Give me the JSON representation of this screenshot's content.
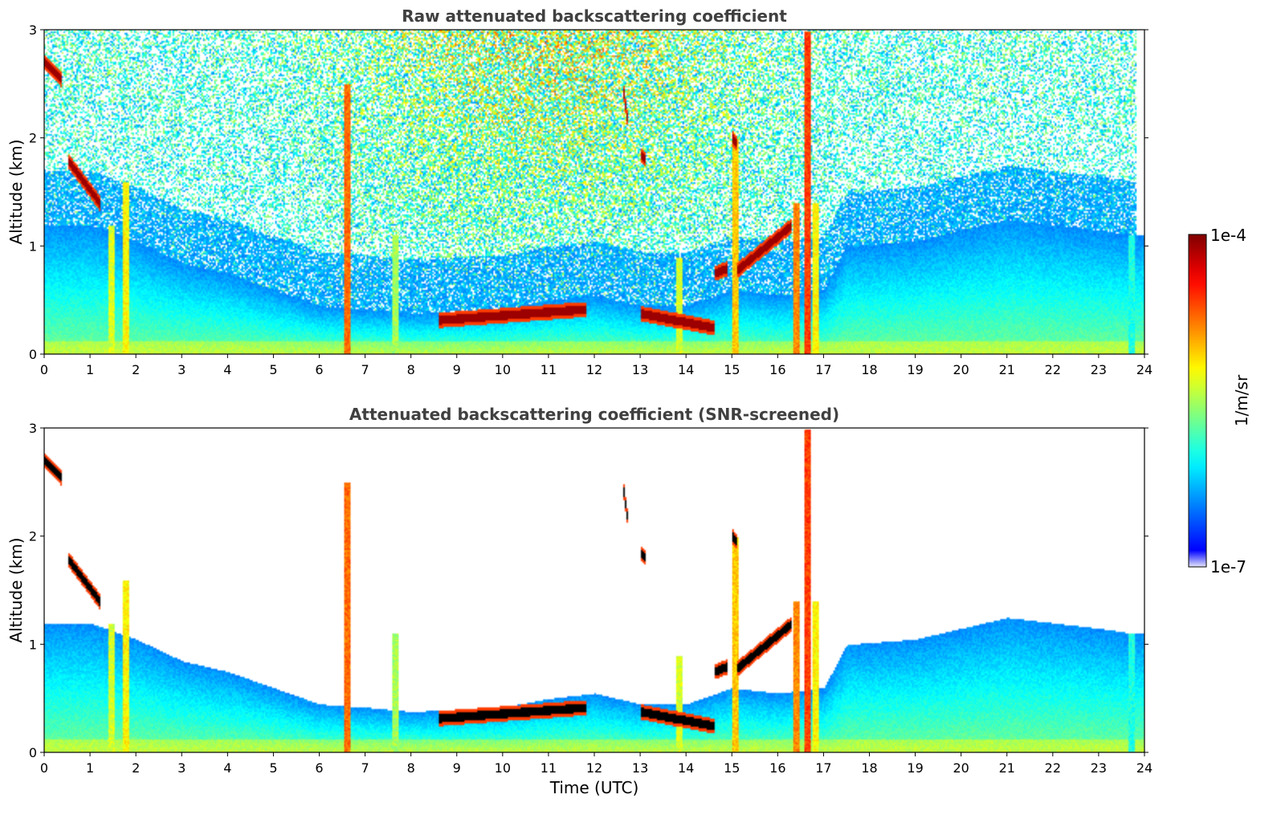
{
  "chart_data": [
    {
      "type": "heatmap",
      "title": "Raw attenuated backscattering coefficient",
      "xlabel": "",
      "ylabel": "Altitude (km)",
      "xlim": [
        0,
        24
      ],
      "ylim": [
        0,
        3
      ],
      "xticks": [
        "0",
        "1",
        "2",
        "3",
        "4",
        "5",
        "6",
        "7",
        "8",
        "9",
        "10",
        "11",
        "12",
        "13",
        "14",
        "15",
        "16",
        "17",
        "18",
        "19",
        "20",
        "21",
        "22",
        "23",
        "24"
      ],
      "yticks": [
        "0",
        "1",
        "2",
        "3"
      ],
      "screened": false
    },
    {
      "type": "heatmap",
      "title": "Attenuated backscattering coefficient (SNR-screened)",
      "xlabel": "Time (UTC)",
      "ylabel": "Altitude (km)",
      "xlim": [
        0,
        24
      ],
      "ylim": [
        0,
        3
      ],
      "xticks": [
        "0",
        "1",
        "2",
        "3",
        "4",
        "5",
        "6",
        "7",
        "8",
        "9",
        "10",
        "11",
        "12",
        "13",
        "14",
        "15",
        "16",
        "17",
        "18",
        "19",
        "20",
        "21",
        "22",
        "23",
        "24"
      ],
      "yticks": [
        "0",
        "1",
        "2",
        "3"
      ],
      "screened": true
    }
  ],
  "colorbar": {
    "label": "1/m/sr",
    "max_label": "1e-4",
    "min_label": "1e-7",
    "colormap": "jet",
    "scale": "log"
  },
  "features": {
    "boundary_layer_top": [
      [
        0,
        1.2
      ],
      [
        1,
        1.2
      ],
      [
        2,
        1.05
      ],
      [
        3,
        0.85
      ],
      [
        4,
        0.75
      ],
      [
        5,
        0.6
      ],
      [
        6,
        0.45
      ],
      [
        7,
        0.42
      ],
      [
        8,
        0.38
      ],
      [
        9,
        0.4
      ],
      [
        10,
        0.42
      ],
      [
        11,
        0.5
      ],
      [
        12,
        0.55
      ],
      [
        13,
        0.45
      ],
      [
        14,
        0.45
      ],
      [
        15,
        0.6
      ],
      [
        16,
        0.55
      ],
      [
        17,
        0.6
      ],
      [
        17.5,
        1.0
      ],
      [
        19,
        1.05
      ],
      [
        20,
        1.15
      ],
      [
        21,
        1.25
      ],
      [
        22,
        1.2
      ],
      [
        23,
        1.15
      ],
      [
        23.8,
        1.1
      ]
    ],
    "cloud_layers": [
      {
        "t": [
          0.5,
          1.2
        ],
        "alt_start": 1.8,
        "alt_end": 1.4
      },
      {
        "t": [
          0.0,
          0.35
        ],
        "alt_start": 2.7,
        "alt_end": 2.55
      },
      {
        "t": [
          8.6,
          11.8
        ],
        "alt_start": 0.32,
        "alt_end": 0.42
      },
      {
        "t": [
          13.0,
          14.6
        ],
        "alt_start": 0.38,
        "alt_end": 0.25
      },
      {
        "t": [
          14.6,
          14.9
        ],
        "alt_start": 0.75,
        "alt_end": 0.8
      },
      {
        "t": [
          15.1,
          16.3
        ],
        "alt_start": 0.78,
        "alt_end": 1.2
      },
      {
        "t": [
          12.6,
          12.7
        ],
        "alt_start": 2.5,
        "alt_end": 2.2
      },
      {
        "t": [
          13.0,
          13.1
        ],
        "alt_start": 1.85,
        "alt_end": 1.8
      },
      {
        "t": [
          15.0,
          15.1
        ],
        "alt_start": 2.0,
        "alt_end": 1.95
      }
    ],
    "precip_columns": [
      {
        "t": 1.45,
        "top": 1.2,
        "strength": 0.55
      },
      {
        "t": 1.75,
        "top": 1.6,
        "strength": 0.6
      },
      {
        "t": 6.6,
        "top": 2.5,
        "strength": 0.75
      },
      {
        "t": 7.65,
        "top": 1.1,
        "strength": 0.5
      },
      {
        "t": 13.85,
        "top": 0.9,
        "strength": 0.55
      },
      {
        "t": 15.05,
        "top": 2.0,
        "strength": 0.65
      },
      {
        "t": 16.4,
        "top": 1.4,
        "strength": 0.72
      },
      {
        "t": 16.65,
        "top": 3.0,
        "strength": 0.8
      },
      {
        "t": 16.8,
        "top": 1.4,
        "strength": 0.6
      },
      {
        "t": 23.7,
        "top": 1.1,
        "strength": 0.35
      }
    ]
  }
}
